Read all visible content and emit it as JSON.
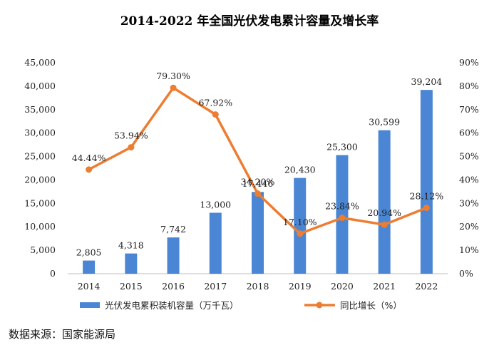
{
  "chart_data": {
    "type": "bar+line",
    "title": "2014-2022 年全国光伏发电累计容量及增长率",
    "categories": [
      "2014",
      "2015",
      "2016",
      "2017",
      "2018",
      "2019",
      "2020",
      "2021",
      "2022"
    ],
    "series": [
      {
        "name": "光伏发电累积装机容量（万千瓦）",
        "type": "bar",
        "axis": "left",
        "values": [
          2805,
          4318,
          7742,
          13000,
          17446,
          20430,
          25300,
          30599,
          39204
        ],
        "labels": [
          "2,805",
          "4,318",
          "7,742",
          "13,000",
          "17,446",
          "20,430",
          "25,300",
          "30,599",
          "39,204"
        ],
        "color": "#4a86d4"
      },
      {
        "name": "同比增长（%）",
        "type": "line",
        "axis": "right",
        "values": [
          44.44,
          53.94,
          79.3,
          67.92,
          34.2,
          17.1,
          23.84,
          20.94,
          28.12
        ],
        "labels": [
          "44.44%",
          "53.94%",
          "79.30%",
          "67.92%",
          "34.20%",
          "17.10%",
          "23.84%",
          "20.94%",
          "28.12%"
        ],
        "color": "#ed7d31"
      }
    ],
    "y_left": {
      "range": [
        0,
        45000
      ],
      "ticks": [
        0,
        5000,
        10000,
        15000,
        20000,
        25000,
        30000,
        35000,
        40000,
        45000
      ],
      "tick_labels": [
        "0",
        "5,000",
        "10,000",
        "15,000",
        "20,000",
        "25,000",
        "30,000",
        "35,000",
        "40,000",
        "45,000"
      ]
    },
    "y_right": {
      "range": [
        0,
        90
      ],
      "ticks": [
        0,
        10,
        20,
        30,
        40,
        50,
        60,
        70,
        80,
        90
      ],
      "tick_labels": [
        "0%",
        "10%",
        "20%",
        "30%",
        "40%",
        "50%",
        "60%",
        "70%",
        "80%",
        "90%"
      ]
    },
    "grid": false,
    "legend": "bottom"
  },
  "source_text": "数据来源：国家能源局"
}
